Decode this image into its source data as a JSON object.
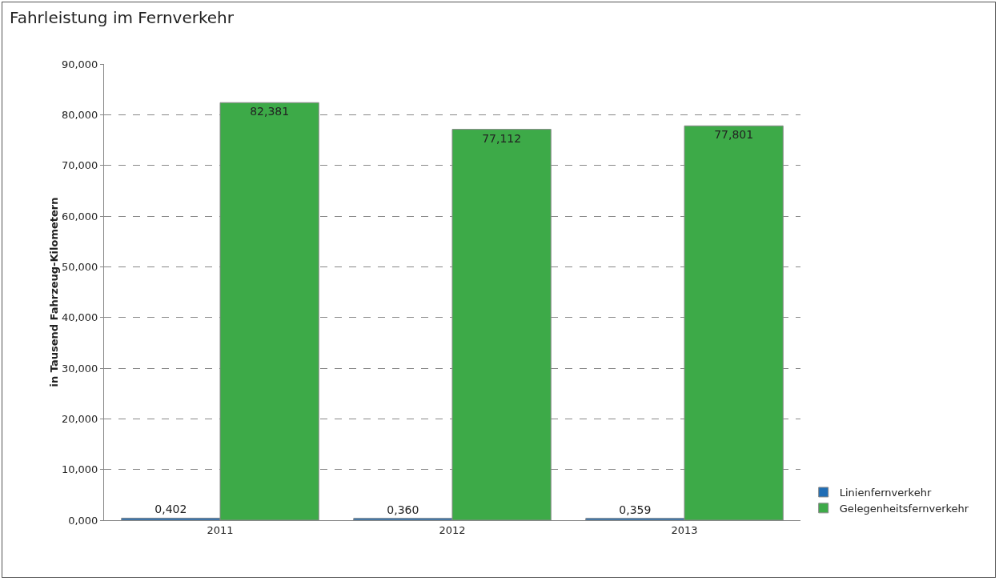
{
  "chart_data": {
    "type": "bar",
    "title": "Fahrleistung im Fernverkehr",
    "ylabel": "in Tausend Fahrzeug-Kilometern",
    "categories": [
      "2011",
      "2012",
      "2013"
    ],
    "series": [
      {
        "name": "Linienfernverkehr",
        "color": "#1f6db5",
        "values": [
          0.402,
          0.36,
          0.359
        ],
        "value_labels": [
          "0,402",
          "0,360",
          "0,359"
        ]
      },
      {
        "name": "Gelegenheitsfernverkehr",
        "color": "#3daa48",
        "values": [
          82.381,
          77.112,
          77.801
        ],
        "value_labels": [
          "82,381",
          "77,112",
          "77,801"
        ]
      }
    ],
    "ylim": [
      0,
      90
    ],
    "yticks": [
      {
        "value": 0,
        "label": "0,000"
      },
      {
        "value": 10,
        "label": "10,000"
      },
      {
        "value": 20,
        "label": "20,000"
      },
      {
        "value": 30,
        "label": "30,000"
      },
      {
        "value": 40,
        "label": "40,000"
      },
      {
        "value": 50,
        "label": "50,000"
      },
      {
        "value": 60,
        "label": "60,000"
      },
      {
        "value": 70,
        "label": "70,000"
      },
      {
        "value": 80,
        "label": "80,000"
      },
      {
        "value": 90,
        "label": "90,000"
      }
    ],
    "grid": "y",
    "legend": "bottom right"
  }
}
